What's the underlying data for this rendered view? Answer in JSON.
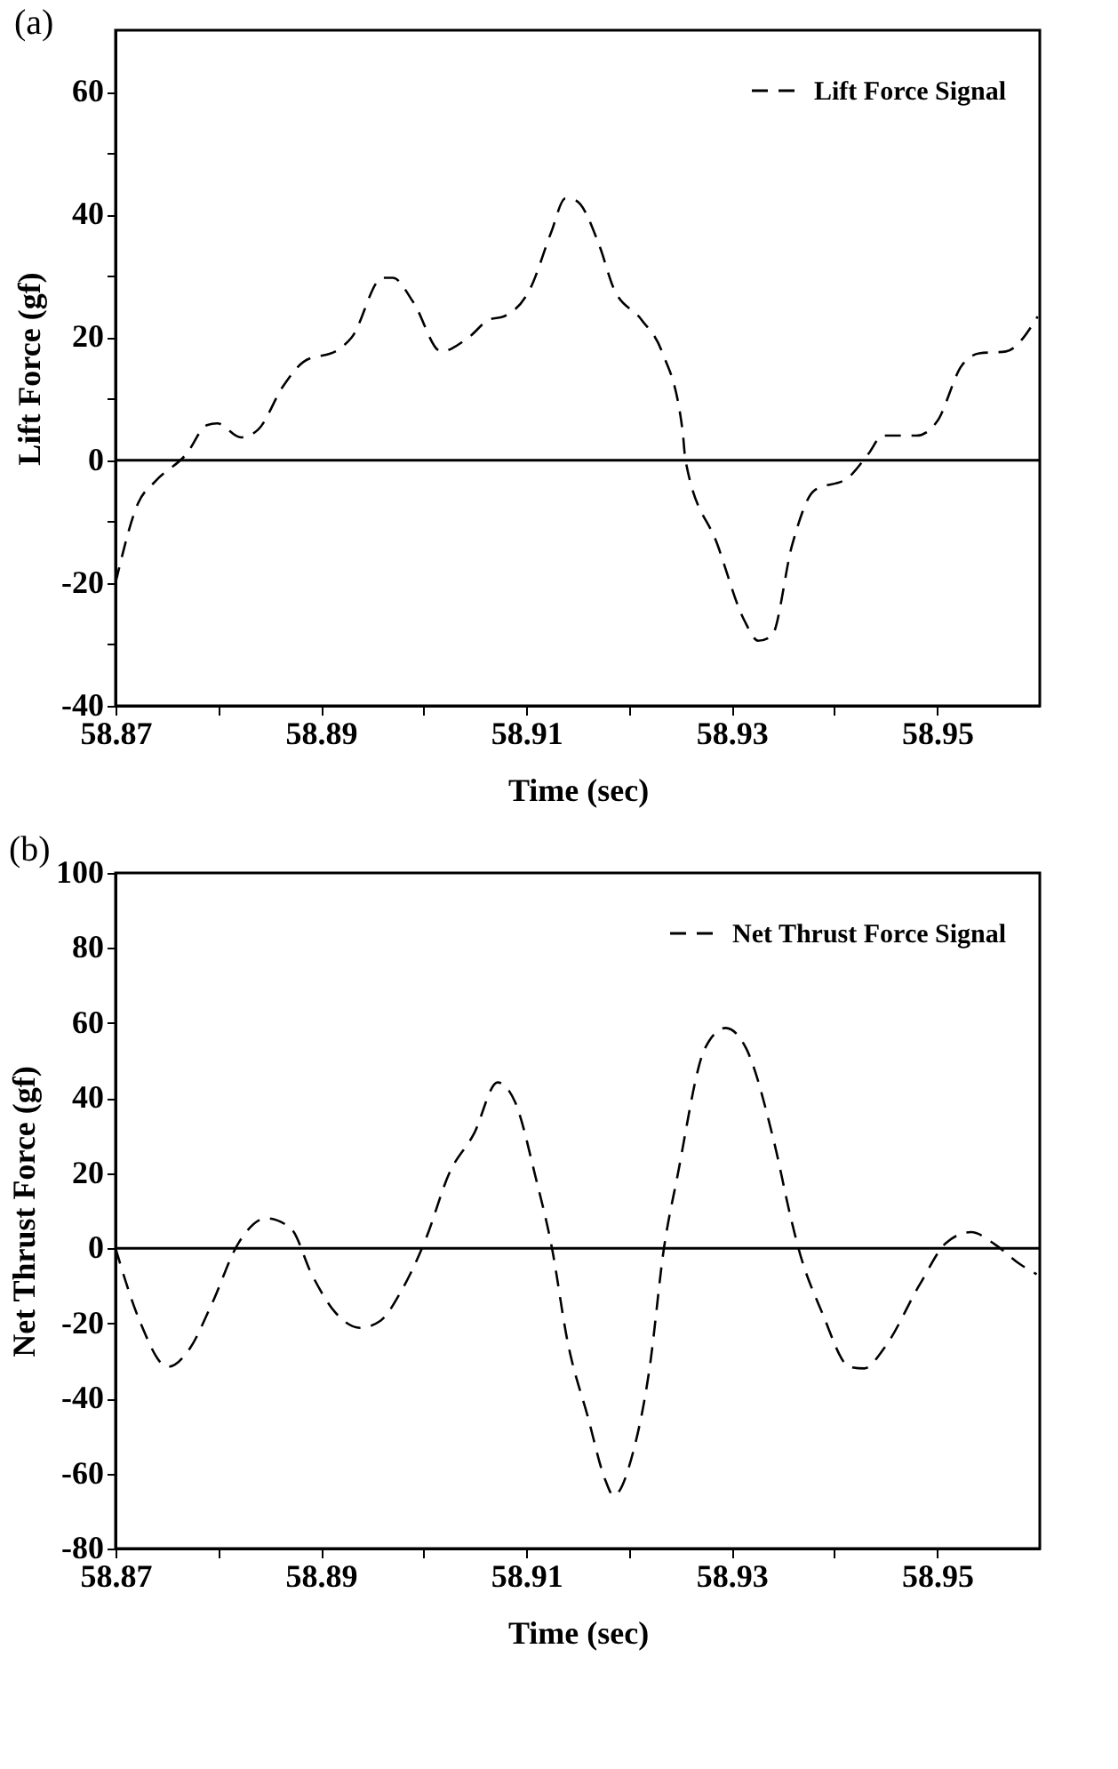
{
  "chart_data": [
    {
      "type": "line",
      "title": "(a)",
      "xlabel": "Time (sec)",
      "ylabel": "Lift Force (gf)",
      "legend": "top right",
      "line_style": "dashed",
      "grid": false,
      "xlim": [
        58.87,
        58.96
      ],
      "ylim": [
        -40,
        70
      ],
      "xticks": [
        58.87,
        {
          "value": 58.88,
          "label": null
        },
        58.89,
        {
          "value": 58.9,
          "label": null
        },
        58.91,
        {
          "value": 58.92,
          "label": null
        },
        58.93,
        {
          "value": 58.94,
          "label": null
        },
        58.95
      ],
      "yticks": [
        -40,
        {
          "value": -30,
          "label": null
        },
        -20,
        {
          "value": -10,
          "label": null
        },
        0,
        {
          "value": 10,
          "label": null
        },
        20,
        {
          "value": 30,
          "label": null
        },
        40,
        {
          "value": 50,
          "label": null
        },
        60
      ],
      "ref_lines": [
        {
          "axis": "y",
          "value": 0,
          "color": "#000000"
        }
      ],
      "series": [
        {
          "name": "Lift Force Signal",
          "color": "#000000",
          "x": [
            58.87,
            58.8722,
            58.8739,
            58.8769,
            58.8789,
            58.8799,
            58.8822,
            58.8839,
            58.8863,
            58.8883,
            58.8917,
            58.893,
            58.896,
            58.897,
            58.899,
            58.9017,
            58.9044,
            58.9064,
            58.9078,
            58.9104,
            58.9124,
            58.9138,
            58.9148,
            58.9171,
            58.9185,
            58.9212,
            58.9232,
            58.9252,
            58.9255,
            58.9286,
            58.9312,
            58.9326,
            58.9339,
            58.9359,
            58.938,
            58.9413,
            58.9433,
            58.9447,
            58.948,
            58.95,
            58.9524,
            58.9541,
            58.9567,
            58.9598
          ],
          "values": [
            -20,
            -7,
            -3.4,
            1,
            5.7,
            6,
            3.7,
            5,
            12,
            16,
            18,
            20,
            29.7,
            29.7,
            25.7,
            17.7,
            20,
            22.9,
            23.4,
            28,
            37,
            42.6,
            42.3,
            35,
            28,
            22.9,
            17.7,
            5,
            0,
            -13.7,
            -26,
            -29.4,
            -28.6,
            -13.7,
            -5,
            -2.9,
            1,
            4,
            4,
            6.3,
            15.4,
            17.4,
            17.7,
            23.4
          ]
        }
      ]
    },
    {
      "type": "line",
      "title": "(b)",
      "xlabel": "Time (sec)",
      "ylabel": "Net Thrust Force (gf)",
      "legend": "top right",
      "line_style": "dashed",
      "grid": false,
      "xlim": [
        58.87,
        58.96
      ],
      "ylim": [
        -80,
        100
      ],
      "xticks": [
        58.87,
        {
          "value": 58.88,
          "label": null
        },
        58.89,
        {
          "value": 58.9,
          "label": null
        },
        58.91,
        {
          "value": 58.92,
          "label": null
        },
        58.93,
        {
          "value": 58.94,
          "label": null
        },
        58.95
      ],
      "yticks": [
        -80,
        -60,
        -40,
        -20,
        0,
        20,
        40,
        60,
        80,
        100
      ],
      "ref_lines": [
        {
          "axis": "y",
          "value": 0,
          "color": "#000000"
        }
      ],
      "series": [
        {
          "name": "Net Thrust Force Signal",
          "color": "#000000",
          "x": [
            58.87,
            58.8723,
            58.8751,
            58.8773,
            58.8793,
            58.882,
            58.8847,
            58.8871,
            58.8891,
            58.8914,
            58.8938,
            58.8958,
            58.8978,
            58.9002,
            58.9025,
            58.9049,
            58.9072,
            58.9089,
            58.9109,
            58.9125,
            58.914,
            58.916,
            58.9177,
            58.9185,
            58.9204,
            58.922,
            58.9234,
            58.9247,
            58.9274,
            58.9294,
            58.9314,
            58.9341,
            58.9358,
            58.9365,
            58.9388,
            58.9415,
            58.9429,
            58.9449,
            58.9483,
            58.9509,
            58.9533,
            58.9556,
            58.958,
            58.9597
          ],
          "values": [
            0,
            -19,
            -31.6,
            -26.4,
            -15.3,
            1.5,
            8,
            5.2,
            -6.9,
            -17.1,
            -21.2,
            -19.3,
            -11.5,
            2.4,
            20,
            30.5,
            44.2,
            39,
            19,
            0,
            -24.6,
            -45,
            -61.8,
            -65.9,
            -54.3,
            -32,
            0,
            19,
            53.3,
            58.7,
            53.3,
            28.6,
            7.6,
            0,
            -17.1,
            -31.6,
            -32,
            -26.4,
            -9.7,
            1.5,
            4.3,
            1.1,
            -4.1,
            -6.9
          ]
        }
      ]
    }
  ]
}
